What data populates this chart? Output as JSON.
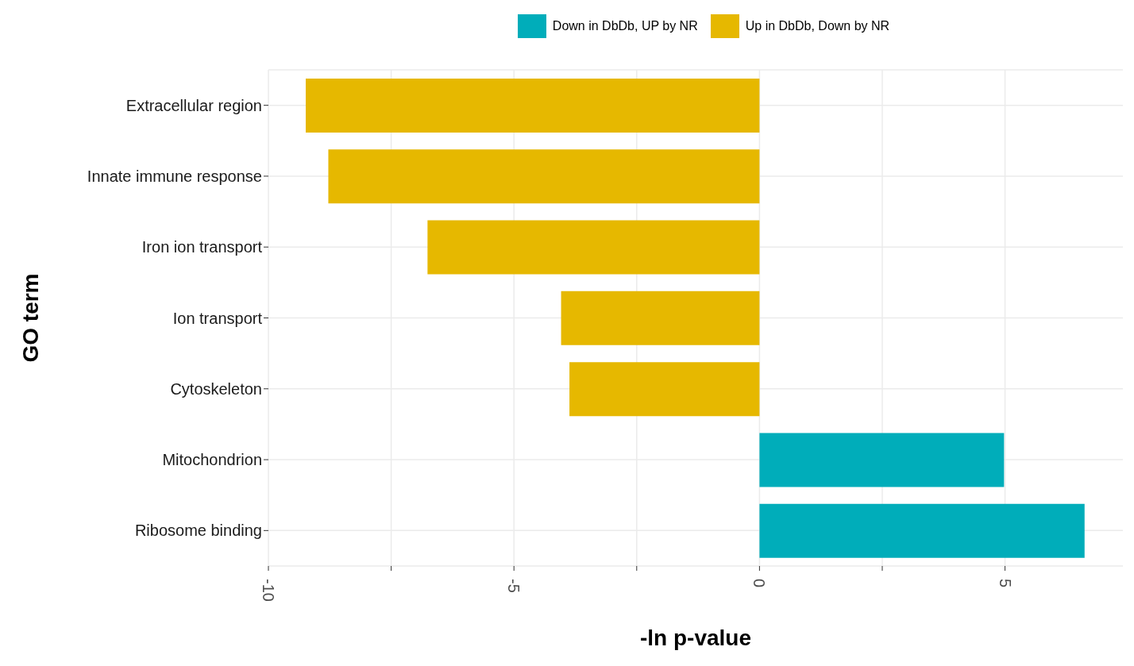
{
  "chart_data": {
    "type": "bar",
    "orientation": "horizontal",
    "stacked": true,
    "xlabel": "-ln p-value",
    "ylabel": "GO term",
    "categories": [
      "Extracellular region",
      "Innate immune response",
      "Iron ion transport",
      "Ion transport",
      "Cytoskeleton",
      "Mitochondrion",
      "Ribosome binding"
    ],
    "series": [
      {
        "name": "Down in DbDb, UP by NR",
        "color": "#00adba",
        "values": [
          null,
          null,
          null,
          null,
          null,
          4.98,
          6.62
        ]
      },
      {
        "name": "Up in DbDb, Down by NR",
        "color": "#e6b800",
        "values": [
          -9.24,
          -8.78,
          -6.76,
          -4.04,
          -3.87,
          null,
          null
        ]
      }
    ],
    "xlim": [
      -10,
      7.4
    ],
    "xticks": [
      -10,
      {
        "value": -7.5,
        "label": null
      },
      -5,
      {
        "value": -2.5,
        "label": null
      },
      0,
      {
        "value": 2.5,
        "label": null
      },
      5
    ],
    "grid": true,
    "legend": "top"
  }
}
